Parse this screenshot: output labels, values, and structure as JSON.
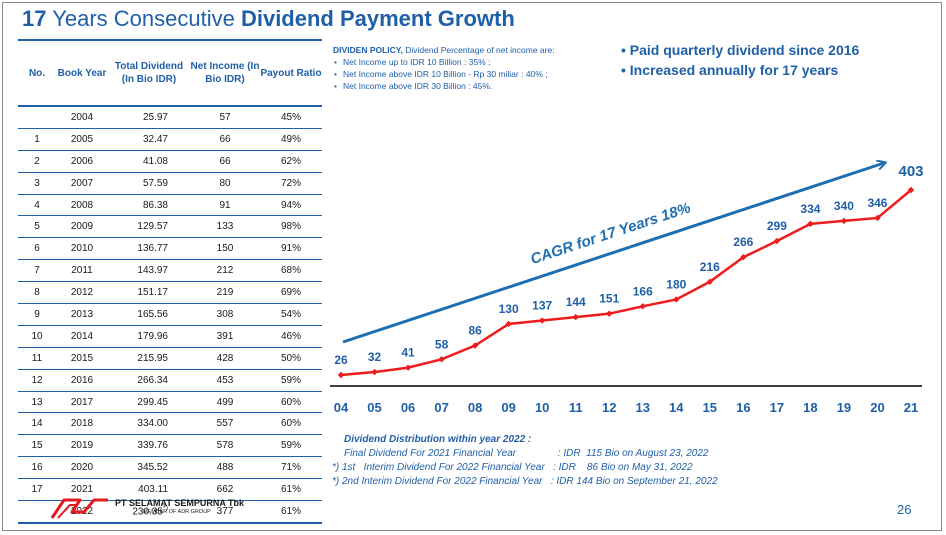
{
  "title": {
    "part1": "17",
    "part2": " Years Consecutive ",
    "part3": "Dividend Payment Growth"
  },
  "table": {
    "headers": [
      "No.",
      "Book Year",
      "Total Dividend (In Bio IDR)",
      "Net Income (In Bio IDR)",
      "Payout Ratio"
    ],
    "rows": [
      [
        "",
        "2004",
        "25.97",
        "57",
        "45%"
      ],
      [
        "1",
        "2005",
        "32.47",
        "66",
        "49%"
      ],
      [
        "2",
        "2006",
        "41.08",
        "66",
        "62%"
      ],
      [
        "3",
        "2007",
        "57.59",
        "80",
        "72%"
      ],
      [
        "4",
        "2008",
        "86.38",
        "91",
        "94%"
      ],
      [
        "5",
        "2009",
        "129.57",
        "133",
        "98%"
      ],
      [
        "6",
        "2010",
        "136.77",
        "150",
        "91%"
      ],
      [
        "7",
        "2011",
        "143.97",
        "212",
        "68%"
      ],
      [
        "8",
        "2012",
        "151.17",
        "219",
        "69%"
      ],
      [
        "9",
        "2013",
        "165.56",
        "308",
        "54%"
      ],
      [
        "10",
        "2014",
        "179.96",
        "391",
        "46%"
      ],
      [
        "11",
        "2015",
        "215.95",
        "428",
        "50%"
      ],
      [
        "12",
        "2016",
        "266.34",
        "453",
        "59%"
      ],
      [
        "13",
        "2017",
        "299.45",
        "499",
        "60%"
      ],
      [
        "14",
        "2018",
        "334.00",
        "557",
        "60%"
      ],
      [
        "15",
        "2019",
        "339.76",
        "578",
        "59%"
      ],
      [
        "16",
        "2020",
        "345.52",
        "488",
        "71%"
      ],
      [
        "17",
        "2021",
        "403.11",
        "662",
        "61%"
      ],
      [
        "",
        "2022",
        "230.35",
        "377",
        "61%"
      ]
    ],
    "footnote_mark": "*)"
  },
  "policy": {
    "heading": "DIVIDEN POLICY,",
    "heading_rest": " Dividend Percentage of net income are:",
    "items": [
      "Net Income up to IDR 10 Billion : 35% ;",
      "Net Income above IDR 10 Billion - Rp 30 miliar : 40% ;",
      "Net Income above IDR 30 Billion : 45%."
    ]
  },
  "highlights": [
    "• Paid quarterly dividend since 2016",
    "• Increased annually for 17 years"
  ],
  "chart_data": {
    "type": "line",
    "categories": [
      "04",
      "05",
      "06",
      "07",
      "08",
      "09",
      "10",
      "11",
      "12",
      "13",
      "14",
      "15",
      "16",
      "17",
      "18",
      "19",
      "20",
      "21"
    ],
    "series": [
      {
        "values": [
          26,
          32,
          41,
          58,
          86,
          130,
          137,
          144,
          151,
          166,
          180,
          216,
          266,
          299,
          334,
          340,
          346,
          403
        ]
      }
    ],
    "data_labels": [
      "26",
      "32",
      "41",
      "58",
      "86",
      "130",
      "137",
      "144",
      "151",
      "166",
      "180",
      "216",
      "266",
      "299",
      "334",
      "340",
      "346",
      "403"
    ],
    "annotation": "CAGR for 17 Years 18%",
    "line_color": "#ee1c1c",
    "label_color": "#1f5fa8",
    "arrow_color": "#1f6fb0",
    "grid": false,
    "ylim": [
      0,
      420
    ]
  },
  "distribution": {
    "heading": "Dividend Distribution within year 2022 :",
    "rows": [
      "Final Dividend For 2021 Financial Year               : IDR  115 Bio on August 23, 2022",
      "*) 1st   Interim Dividend For 2022 Financial Year   : IDR    86 Bio on May 31, 2022",
      "*) 2nd Interim Dividend For 2022 Financial Year   : IDR 144 Bio on September 21, 2022"
    ]
  },
  "company": {
    "name": "PT SELAMAT SEMPURNA Tbk",
    "sub": "MEMBER OF ADR GROUP"
  },
  "page_number": "26"
}
